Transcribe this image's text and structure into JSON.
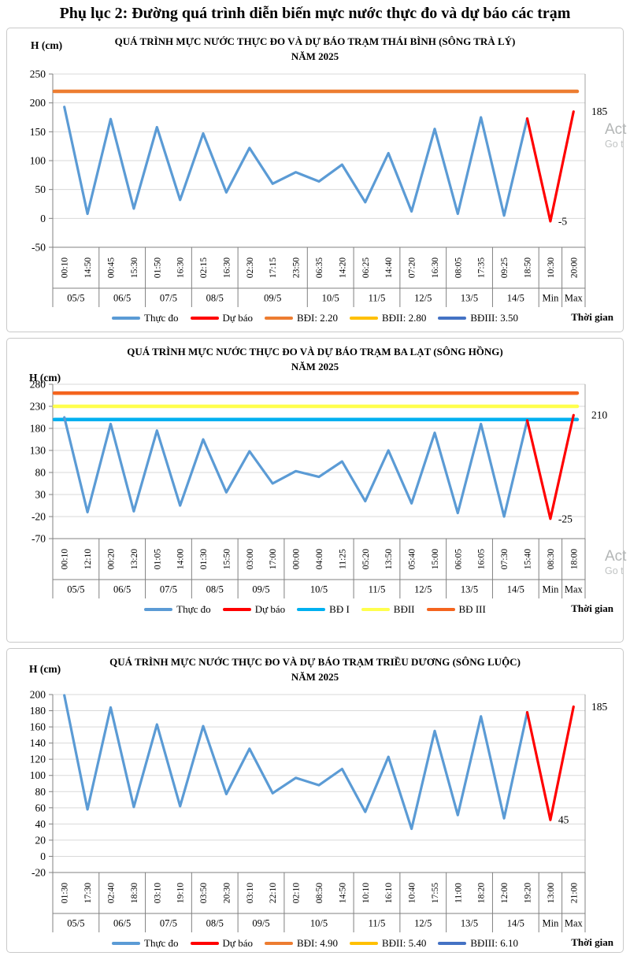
{
  "page_title": "Phụ lục 2: Đường quá trình diễn biến mực nước thực đo và dự báo các trạm",
  "watermarks": [
    {
      "line1": "Act",
      "line2": "Go t"
    },
    {
      "line1": "Act",
      "line2": "Go t"
    }
  ],
  "chart_data": [
    {
      "type": "line",
      "title_line1": "QUÁ TRÌNH MỰC NƯỚC THỰC ĐO VÀ DỰ BÁO TRẠM THÁI BÌNH (SÔNG TRÀ LÝ)",
      "title_line2": "NĂM 2025",
      "ylabel": "H (cm)",
      "xlabel": "Thời gian",
      "ylim": [
        -50,
        250
      ],
      "ytick_step": 50,
      "grid": true,
      "legend_position": "bottom",
      "groups": [
        {
          "date": "05/5",
          "times": [
            "00:10",
            "14:50"
          ]
        },
        {
          "date": "06/5",
          "times": [
            "00:45",
            "15:30"
          ]
        },
        {
          "date": "07/5",
          "times": [
            "01:50",
            "16:30"
          ]
        },
        {
          "date": "08/5",
          "times": [
            "02:15",
            "16:30"
          ]
        },
        {
          "date": "09/5",
          "times": [
            "02:30",
            "17:15",
            "23:50"
          ]
        },
        {
          "date": "10/5",
          "times": [
            "06:35",
            "14:20"
          ]
        },
        {
          "date": "11/5",
          "times": [
            "06:25",
            "14:40"
          ]
        },
        {
          "date": "12/5",
          "times": [
            "07:20",
            "16:30"
          ]
        },
        {
          "date": "13/5",
          "times": [
            "08:05",
            "17:35"
          ]
        },
        {
          "date": "14/5",
          "times": [
            "09:25",
            "18:50"
          ]
        },
        {
          "date": "Min",
          "times": [
            "10:30"
          ]
        },
        {
          "date": "Max",
          "times": [
            "20:00"
          ]
        }
      ],
      "series": [
        {
          "name": "Thực đo",
          "color": "#5B9BD5",
          "start_index": 0,
          "values": [
            193,
            8,
            172,
            17,
            158,
            32,
            147,
            45,
            122,
            60,
            80,
            64,
            93,
            28,
            113,
            12,
            155,
            8,
            175,
            5,
            173
          ]
        },
        {
          "name": "Dự báo",
          "color": "#FF0000",
          "start_index": 20,
          "values": [
            173,
            -5,
            185
          ]
        }
      ],
      "ref_lines": [
        {
          "name": "BĐI: 2.20",
          "value": 220,
          "color": "#ED7D31"
        },
        {
          "name": "BĐII: 2.80",
          "value": 280,
          "color": "#FFC000"
        },
        {
          "name": "BĐIII: 3.50",
          "value": 350,
          "color": "#4472C4"
        }
      ],
      "point_labels": [
        {
          "col_index": 21,
          "value": -5,
          "text": "-5"
        },
        {
          "col_index": 22,
          "value": 185,
          "text": "185"
        }
      ]
    },
    {
      "type": "line",
      "title_line1": "QUÁ TRÌNH MỰC NƯỚC THỰC ĐO VÀ DỰ BÁO TRẠM BA LẠT (SÔNG HỒNG)",
      "title_line2": "NĂM 2025",
      "ylabel": "H (cm)",
      "xlabel": "Thời gian",
      "ylim": [
        -70,
        280
      ],
      "ytick_step": 50,
      "grid": true,
      "legend_position": "bottom",
      "groups": [
        {
          "date": "05/5",
          "times": [
            "00:10",
            "12:10"
          ]
        },
        {
          "date": "06/5",
          "times": [
            "00:20",
            "13:20"
          ]
        },
        {
          "date": "07/5",
          "times": [
            "01:05",
            "14:00"
          ]
        },
        {
          "date": "08/5",
          "times": [
            "01:30",
            "15:50"
          ]
        },
        {
          "date": "09/5",
          "times": [
            "03:00",
            "17:00"
          ]
        },
        {
          "date": "10/5",
          "times": [
            "00:00",
            "04:00",
            "11:25"
          ]
        },
        {
          "date": "11/5",
          "times": [
            "05:20",
            "13:50"
          ]
        },
        {
          "date": "12/5",
          "times": [
            "05:40",
            "15:00"
          ]
        },
        {
          "date": "13/5",
          "times": [
            "06:05",
            "16:05"
          ]
        },
        {
          "date": "14/5",
          "times": [
            "07:30",
            "15:40"
          ]
        },
        {
          "date": "Min",
          "times": [
            "08:30"
          ]
        },
        {
          "date": "Max",
          "times": [
            "18:00"
          ]
        }
      ],
      "series": [
        {
          "name": "Thực đo",
          "color": "#5B9BD5",
          "start_index": 0,
          "values": [
            205,
            -10,
            190,
            -8,
            175,
            5,
            155,
            35,
            128,
            55,
            83,
            70,
            105,
            15,
            130,
            10,
            170,
            -12,
            190,
            -20,
            198
          ]
        },
        {
          "name": "Dự báo",
          "color": "#FF0000",
          "start_index": 20,
          "values": [
            198,
            -25,
            210
          ]
        }
      ],
      "ref_lines": [
        {
          "name": "BĐ I",
          "value": 200,
          "color": "#00B0F0"
        },
        {
          "name": "BĐII",
          "value": 230,
          "color": "#FFFF4D"
        },
        {
          "name": "BĐ III",
          "value": 260,
          "color": "#F4641E"
        }
      ],
      "point_labels": [
        {
          "col_index": 21,
          "value": -25,
          "text": "-25"
        },
        {
          "col_index": 22,
          "value": 210,
          "text": "210"
        }
      ]
    },
    {
      "type": "line",
      "title_line1": "QUÁ TRÌNH MỰC NƯỚC THỰC ĐO VÀ DỰ BÁO TRẠM TRIỀU DƯƠNG  (SÔNG LUỘC)",
      "title_line2": "NĂM 2025",
      "ylabel": "H (cm)",
      "xlabel": "Thời gian",
      "ylim": [
        -20,
        200
      ],
      "ytick_step": 20,
      "grid": true,
      "legend_position": "bottom",
      "groups": [
        {
          "date": "05/5",
          "times": [
            "01:30",
            "17:30"
          ]
        },
        {
          "date": "06/5",
          "times": [
            "02:40",
            "18:30"
          ]
        },
        {
          "date": "07/5",
          "times": [
            "03:10",
            "19:10"
          ]
        },
        {
          "date": "08/5",
          "times": [
            "03:50",
            "20:30"
          ]
        },
        {
          "date": "09/5",
          "times": [
            "03:10",
            "22:10"
          ]
        },
        {
          "date": "10/5",
          "times": [
            "02:10",
            "08:50",
            "14:50"
          ]
        },
        {
          "date": "11/5",
          "times": [
            "10:10",
            "16:10"
          ]
        },
        {
          "date": "12/5",
          "times": [
            "10:40",
            "17:55"
          ]
        },
        {
          "date": "13/5",
          "times": [
            "11:00",
            "18:20"
          ]
        },
        {
          "date": "14/5",
          "times": [
            "12:00",
            "19:20"
          ]
        },
        {
          "date": "Min",
          "times": [
            "13:00"
          ]
        },
        {
          "date": "Max",
          "times": [
            "21:00"
          ]
        }
      ],
      "series": [
        {
          "name": "Thực đo",
          "color": "#5B9BD5",
          "start_index": 0,
          "values": [
            199,
            58,
            184,
            61,
            163,
            62,
            161,
            77,
            133,
            78,
            97,
            88,
            108,
            55,
            123,
            34,
            155,
            51,
            173,
            47,
            178
          ]
        },
        {
          "name": "Dự báo",
          "color": "#FF0000",
          "start_index": 20,
          "values": [
            178,
            45,
            185
          ]
        }
      ],
      "ref_lines": [
        {
          "name": "BĐI: 4.90",
          "value": 490,
          "color": "#ED7D31"
        },
        {
          "name": "BĐII: 5.40",
          "value": 540,
          "color": "#FFC000"
        },
        {
          "name": "BĐIII: 6.10",
          "value": 610,
          "color": "#4472C4"
        }
      ],
      "point_labels": [
        {
          "col_index": 21,
          "value": 45,
          "text": "45"
        },
        {
          "col_index": 22,
          "value": 185,
          "text": "185"
        }
      ]
    }
  ]
}
